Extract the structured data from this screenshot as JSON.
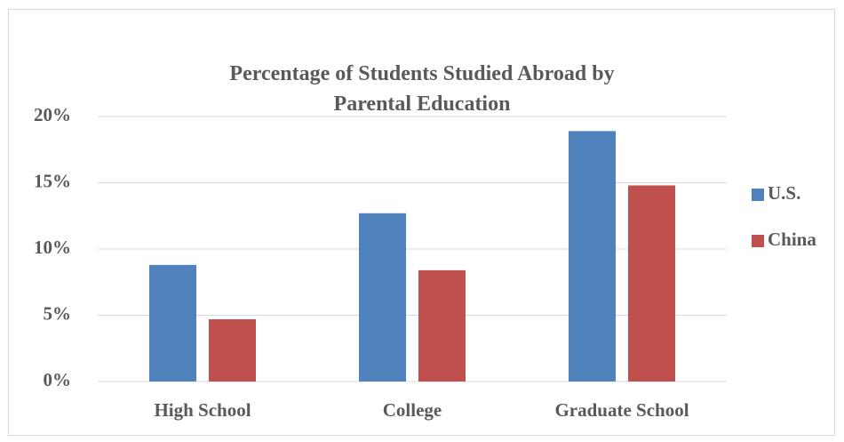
{
  "chart_data": {
    "type": "bar",
    "title": "Percentage of Students Studied Abroad by Parental Education",
    "categories": [
      "High School",
      "College",
      "Graduate School"
    ],
    "series": [
      {
        "name": "U.S.",
        "color": "#4f81bd",
        "values": [
          8.8,
          12.7,
          18.9
        ]
      },
      {
        "name": "China",
        "color": "#c0504d",
        "values": [
          4.7,
          8.4,
          14.8
        ]
      }
    ],
    "ylim": [
      0,
      20
    ],
    "yticks": [
      {
        "value": 0,
        "label": "0%"
      },
      {
        "value": 5,
        "label": "5%"
      },
      {
        "value": 10,
        "label": "10%"
      },
      {
        "value": 15,
        "label": "15%"
      },
      {
        "value": 20,
        "label": "20%"
      }
    ],
    "grid": true,
    "legend": "right"
  }
}
